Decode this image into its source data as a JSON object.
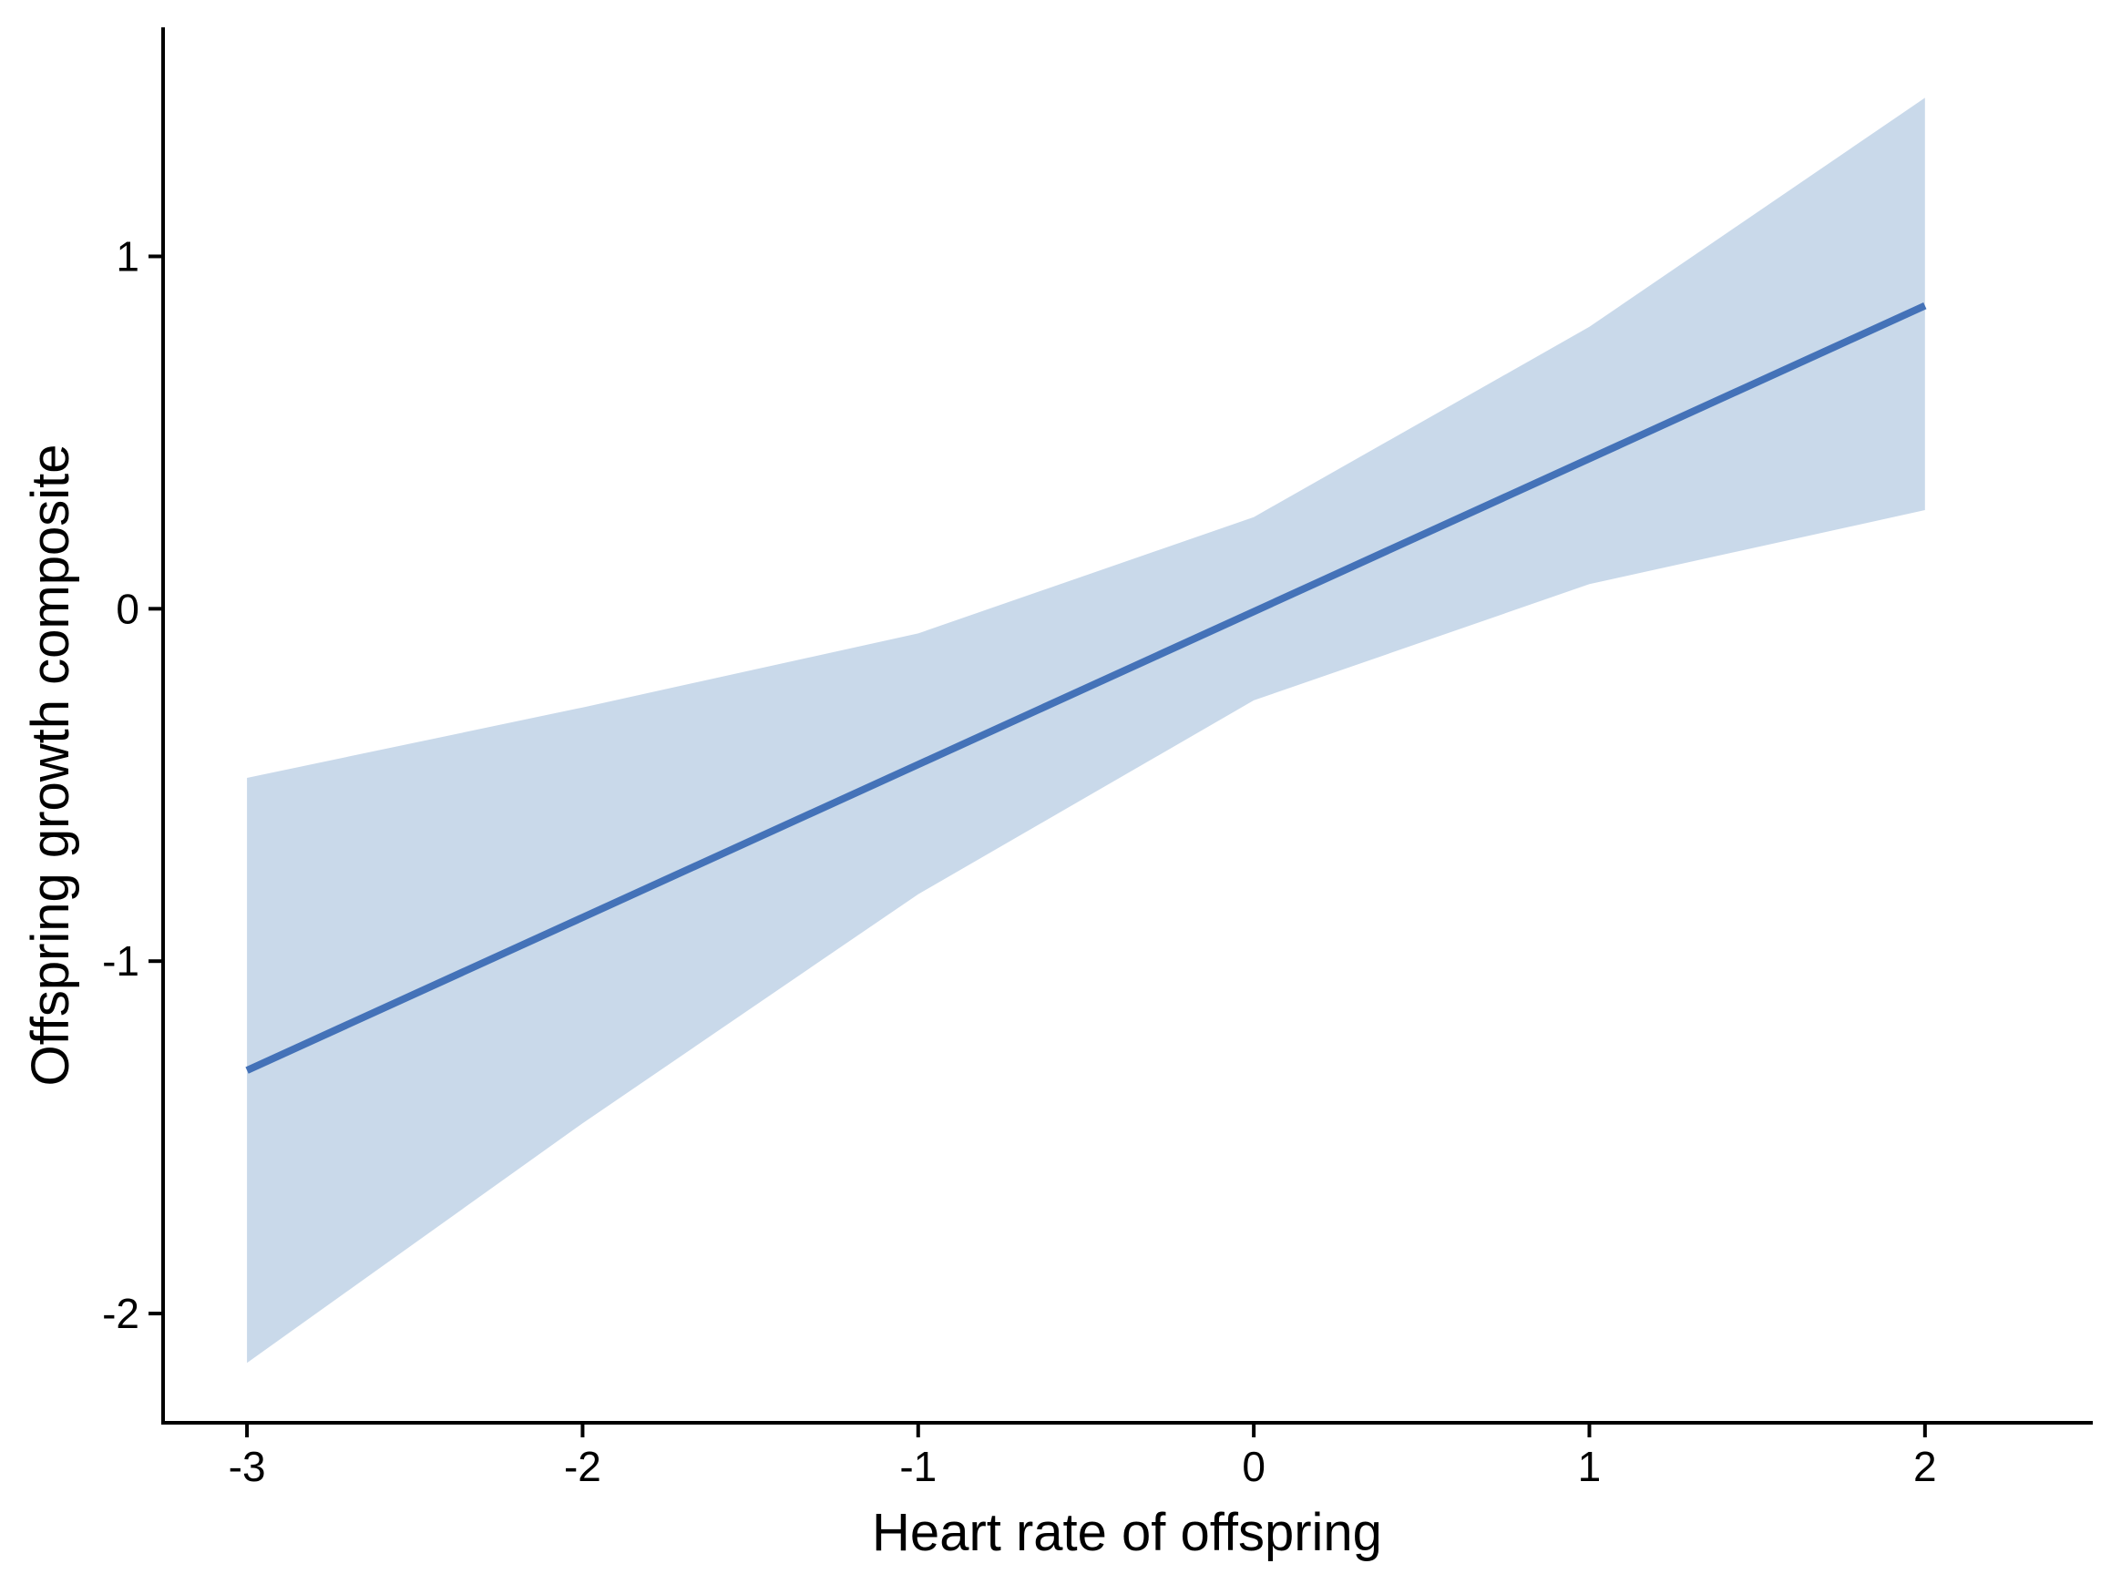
{
  "chart_data": {
    "type": "line",
    "title": "",
    "xlabel": "Heart rate of offspring",
    "ylabel": "Offspring growth composite",
    "xlim": [
      -3.25,
      2.5
    ],
    "ylim": [
      -2.31,
      1.65
    ],
    "xticks": [
      -3,
      -2,
      -1,
      0,
      1,
      2
    ],
    "xtick_labels": [
      "-3",
      "-2",
      "-1",
      "0",
      "1",
      "2"
    ],
    "yticks": [
      -2,
      -1,
      0,
      1
    ],
    "ytick_labels": [
      "-2",
      "-1",
      "0",
      "1"
    ],
    "grid": false,
    "series": [
      {
        "type": "line",
        "x": [
          -3,
          2
        ],
        "y": [
          -1.31,
          0.86
        ],
        "color": "#4472b8"
      },
      {
        "type": "confidence-band",
        "x": [
          -3,
          -2,
          -1,
          0,
          1,
          2
        ],
        "lower": [
          -2.14,
          -1.46,
          -0.81,
          -0.26,
          0.07,
          0.28
        ],
        "upper": [
          -0.48,
          -0.28,
          -0.07,
          0.26,
          0.8,
          1.45
        ],
        "color": "#c9d9ea"
      }
    ]
  }
}
